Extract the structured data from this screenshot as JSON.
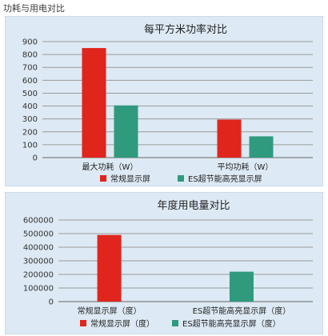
{
  "page_title": "功耗与用电对比",
  "colors": {
    "red": "#e0251d",
    "green": "#2f9a7e",
    "grid": "#9a9a9a",
    "axis_text": "#333333"
  },
  "chart_data": [
    {
      "type": "bar",
      "title": "每平方米功率对比",
      "categories": [
        "最大功耗（W）",
        "平均功耗（W）"
      ],
      "series": [
        {
          "name": "常规显示屏",
          "values": [
            850,
            295
          ]
        },
        {
          "name": "ES超节能高亮显示屏",
          "values": [
            405,
            165
          ]
        }
      ],
      "yticks": [
        "900",
        "800",
        "700",
        "600",
        "500",
        "400",
        "300",
        "200",
        "100",
        "0"
      ],
      "ylim": [
        0,
        900
      ],
      "grid": true,
      "legend_position": "bottom"
    },
    {
      "type": "bar",
      "title": "年度用电量对比",
      "categories": [
        "常规显示屏（度）",
        "ES超节能高亮显示屏（度）"
      ],
      "series": [
        {
          "name": "常规显示屏（度）",
          "values": [
            490000,
            0
          ]
        },
        {
          "name": "ES超节能高亮显示屏（度）",
          "values": [
            0,
            220000
          ]
        }
      ],
      "yticks": [
        "600000",
        "500000",
        "400000",
        "300000",
        "200000",
        "100000",
        "0"
      ],
      "ylim": [
        0,
        600000
      ],
      "grid": true,
      "legend_position": "bottom"
    }
  ]
}
